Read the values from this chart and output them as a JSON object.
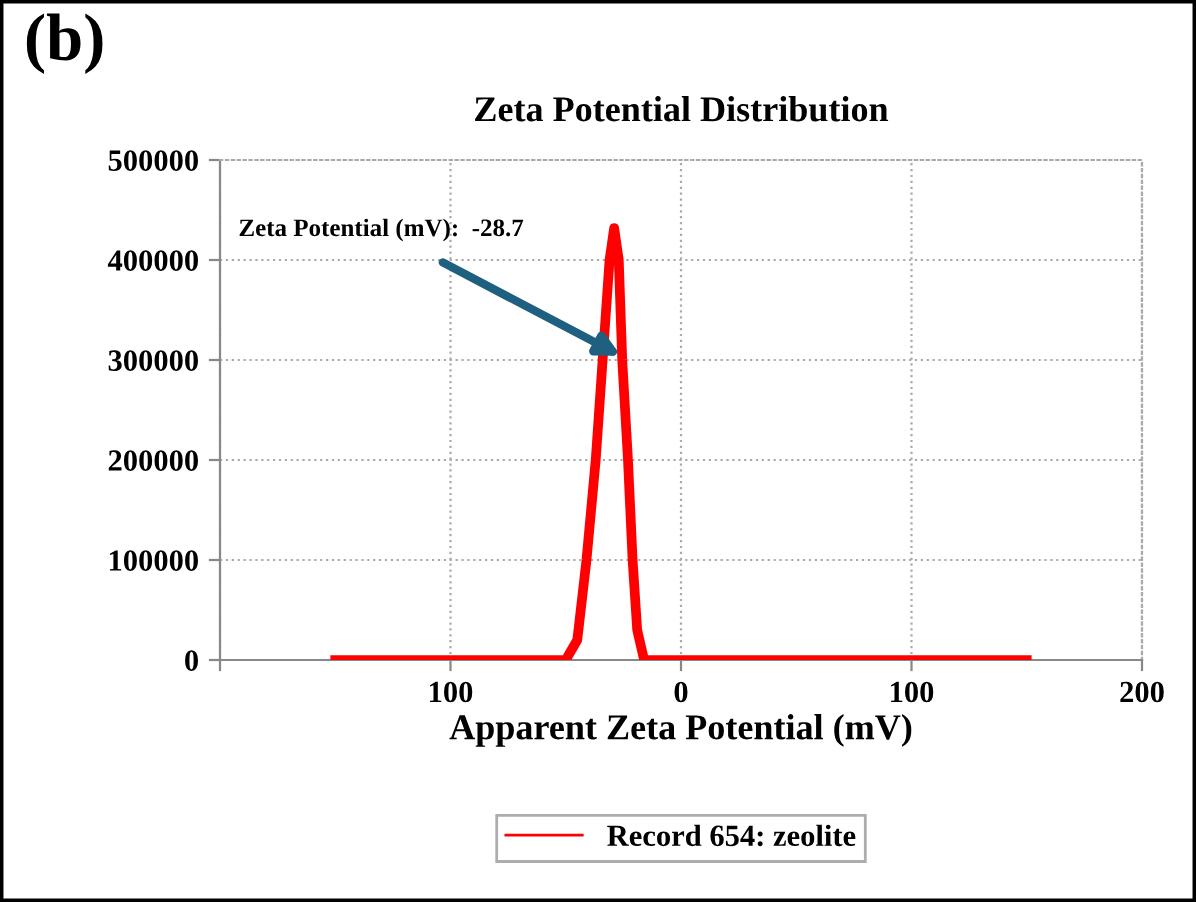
{
  "chart_data": {
    "type": "line",
    "title": "Zeta Potential Distribution",
    "xlabel": "Apparent Zeta Potential (mV)",
    "annotations": [
      "(b)",
      {
        "text": "Zeta Potential (mV):  -28.7",
        "x": -26,
        "y": 304000
      }
    ],
    "series": [
      {
        "name": "Record 654: zeolite",
        "color": "#ff0000",
        "x": [
          -150,
          -50,
          -45,
          -41,
          -37,
          -34,
          -31,
          -29,
          -27,
          -25.5,
          -23,
          -21,
          -19,
          -16,
          150
        ],
        "values": [
          0,
          0,
          20000,
          100000,
          200000,
          300000,
          400000,
          432000,
          400000,
          300000,
          200000,
          100000,
          30000,
          0,
          0
        ]
      }
    ],
    "xlim": [
      -200,
      200
    ],
    "xticks": [
      {
        "value": -200,
        "label": null
      },
      {
        "value": -100,
        "label": "100"
      },
      0,
      100,
      200
    ],
    "ylim": [
      0,
      500000
    ],
    "yticks": [
      0,
      100000,
      200000,
      300000,
      400000,
      500000
    ],
    "grid": true,
    "legend": "bottom",
    "marker": "none",
    "line_style": "solid"
  }
}
